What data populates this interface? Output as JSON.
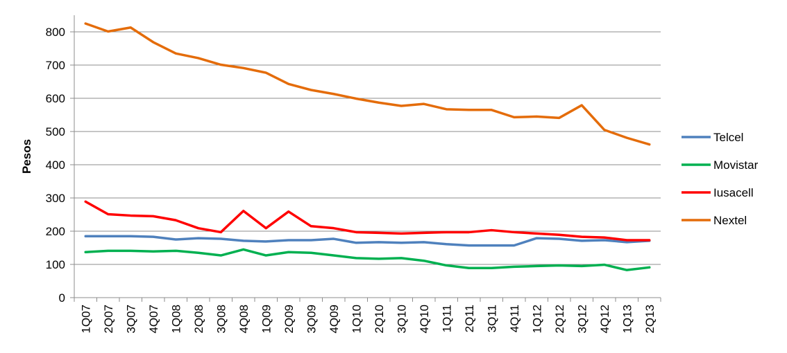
{
  "chart_data": {
    "type": "line",
    "title": "",
    "xlabel": "",
    "ylabel": "Pesos",
    "ylim": [
      0,
      850
    ],
    "yticks": [
      0,
      100,
      200,
      300,
      400,
      500,
      600,
      700,
      800
    ],
    "grid": true,
    "legend_position": "right",
    "categories": [
      "1Q07",
      "2Q07",
      "3Q07",
      "4Q07",
      "1Q08",
      "2Q08",
      "3Q08",
      "4Q08",
      "1Q09",
      "2Q09",
      "3Q09",
      "4Q09",
      "1Q10",
      "2Q10",
      "3Q10",
      "4Q10",
      "1Q11",
      "2Q11",
      "3Q11",
      "4Q11",
      "1Q12",
      "2Q12",
      "3Q12",
      "4Q12",
      "1Q13",
      "2Q13"
    ],
    "series": [
      {
        "name": "Telcel",
        "color": "#4f81bd",
        "values": [
          185,
          185,
          185,
          183,
          175,
          179,
          177,
          171,
          169,
          173,
          173,
          177,
          165,
          167,
          165,
          167,
          161,
          157,
          157,
          157,
          179,
          177,
          171,
          173,
          167,
          171
        ]
      },
      {
        "name": "Movistar",
        "color": "#00b050",
        "values": [
          137,
          141,
          141,
          139,
          141,
          135,
          127,
          145,
          127,
          137,
          135,
          127,
          119,
          117,
          119,
          111,
          97,
          89,
          89,
          93,
          95,
          97,
          95,
          99,
          83,
          91
        ]
      },
      {
        "name": "Iusacell",
        "color": "#ff0000",
        "values": [
          289,
          251,
          247,
          245,
          233,
          209,
          197,
          261,
          209,
          259,
          215,
          209,
          197,
          195,
          193,
          195,
          197,
          197,
          203,
          197,
          193,
          189,
          183,
          181,
          173,
          173
        ]
      },
      {
        "name": "Nextel",
        "color": "#e46c0a",
        "values": [
          825,
          801,
          813,
          769,
          735,
          721,
          701,
          691,
          677,
          643,
          625,
          613,
          599,
          587,
          577,
          583,
          567,
          565,
          565,
          543,
          545,
          541,
          579,
          505,
          481,
          461
        ]
      }
    ]
  }
}
